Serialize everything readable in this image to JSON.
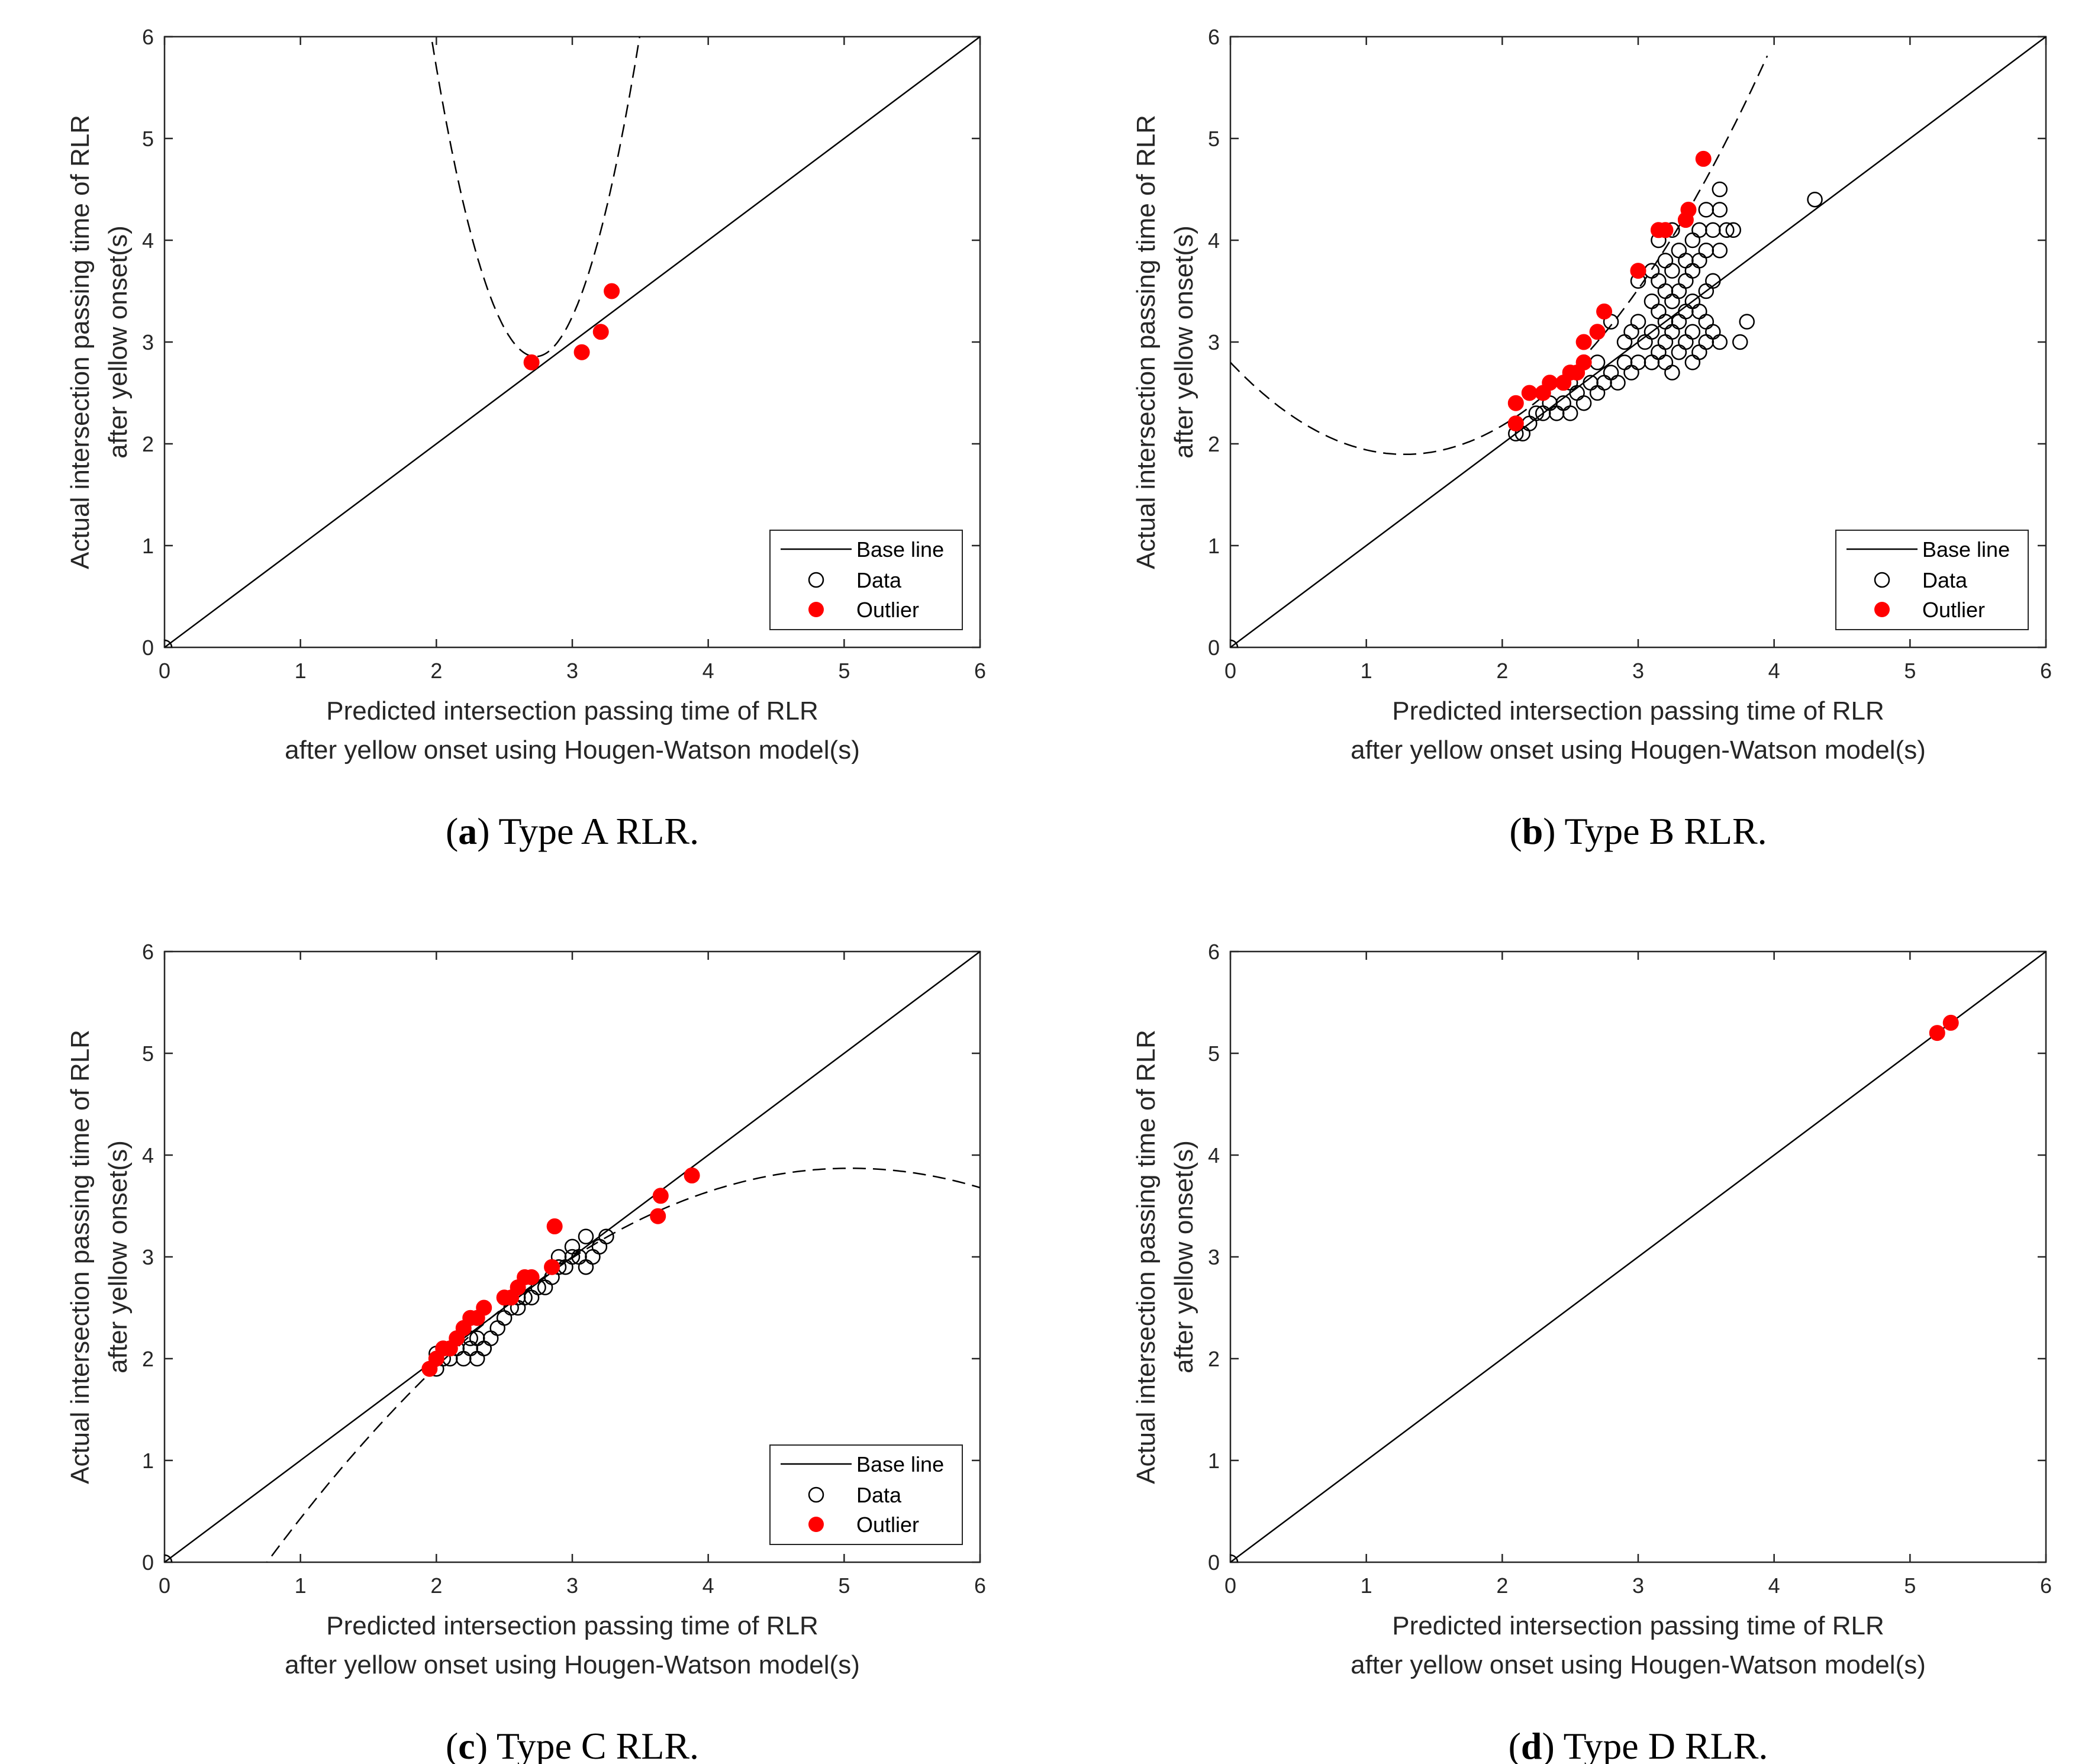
{
  "shared_labels": {
    "xlabel_line1": "Predicted intersection passing time of RLR",
    "xlabel_line2": "after yellow onset using Hougen-Watson model(s)",
    "ylabel_line1": "Actual intersection passing time of RLR",
    "ylabel_line2": "after yellow onset(s)",
    "legend": {
      "base": "Base line",
      "data": "Data",
      "outlier": "Outlier"
    }
  },
  "colors": {
    "outlier": "#ff0000",
    "data": "#000000",
    "axis": "#262626"
  },
  "chart_data": [
    {
      "type": "scatter",
      "panel": "a",
      "caption_letter": "a",
      "caption_text": "Type A RLR.",
      "xlim": [
        0,
        6
      ],
      "ylim": [
        0,
        6
      ],
      "xticks": [
        "0",
        "1",
        "2",
        "3",
        "4",
        "5",
        "6"
      ],
      "yticks": [
        "0",
        "1",
        "2",
        "3",
        "4",
        "5",
        "6"
      ],
      "legend_visible": true,
      "legend_location": "bottom-right",
      "base_line": [
        [
          0,
          0
        ],
        [
          6,
          6
        ]
      ],
      "fit_curve": {
        "type": "quadratic",
        "coefficients": [
          42.7,
          -29.2,
          5.35
        ],
        "x_range": [
          1.9,
          3.75
        ]
      },
      "data": [
        [
          0,
          0
        ]
      ],
      "outliers": [
        [
          2.7,
          2.8
        ],
        [
          3.07,
          2.9
        ],
        [
          3.21,
          3.1
        ],
        [
          3.29,
          3.5
        ]
      ]
    },
    {
      "type": "scatter",
      "panel": "b",
      "caption_letter": "b",
      "caption_text": "Type B RLR.",
      "xlim": [
        0,
        6
      ],
      "ylim": [
        0,
        6
      ],
      "xticks": [
        "0",
        "1",
        "2",
        "3",
        "4",
        "5",
        "6"
      ],
      "yticks": [
        "0",
        "1",
        "2",
        "3",
        "4",
        "5",
        "6"
      ],
      "legend_visible": true,
      "legend_location": "bottom-right",
      "base_line": [
        [
          0,
          0
        ],
        [
          6,
          6
        ]
      ],
      "fit_curve": {
        "type": "quadratic",
        "coefficients": [
          2.8,
          -1.41,
          0.55
        ],
        "x_range": [
          0,
          3.95
        ]
      },
      "data": [
        [
          0,
          0
        ],
        [
          4.3,
          4.4
        ],
        [
          3.8,
          3.2
        ],
        [
          3.75,
          3.0
        ],
        [
          3.6,
          3.0
        ],
        [
          2.1,
          2.1
        ],
        [
          2.15,
          2.1
        ],
        [
          2.2,
          2.2
        ],
        [
          2.25,
          2.3
        ],
        [
          2.3,
          2.3
        ],
        [
          2.35,
          2.4
        ],
        [
          2.4,
          2.3
        ],
        [
          2.45,
          2.4
        ],
        [
          2.5,
          2.3
        ],
        [
          2.55,
          2.5
        ],
        [
          2.6,
          2.4
        ],
        [
          2.65,
          2.6
        ],
        [
          2.7,
          2.5
        ],
        [
          2.75,
          2.6
        ],
        [
          2.8,
          2.7
        ],
        [
          2.85,
          2.6
        ],
        [
          2.9,
          2.8
        ],
        [
          2.95,
          2.7
        ],
        [
          3.0,
          2.8
        ],
        [
          3.0,
          3.2
        ],
        [
          2.3,
          2.5
        ],
        [
          2.5,
          2.6
        ],
        [
          2.7,
          2.8
        ],
        [
          2.9,
          3.0
        ],
        [
          2.8,
          3.2
        ],
        [
          2.95,
          3.1
        ],
        [
          3.0,
          3.6
        ],
        [
          3.05,
          3.0
        ],
        [
          3.1,
          2.8
        ],
        [
          3.1,
          3.1
        ],
        [
          3.1,
          3.4
        ],
        [
          3.1,
          3.7
        ],
        [
          3.15,
          2.9
        ],
        [
          3.15,
          3.3
        ],
        [
          3.15,
          3.6
        ],
        [
          3.15,
          4.0
        ],
        [
          3.2,
          2.8
        ],
        [
          3.2,
          3.0
        ],
        [
          3.2,
          3.2
        ],
        [
          3.2,
          3.5
        ],
        [
          3.2,
          3.8
        ],
        [
          3.25,
          2.7
        ],
        [
          3.25,
          3.1
        ],
        [
          3.25,
          3.4
        ],
        [
          3.25,
          3.7
        ],
        [
          3.25,
          4.1
        ],
        [
          3.3,
          2.9
        ],
        [
          3.3,
          3.2
        ],
        [
          3.3,
          3.5
        ],
        [
          3.3,
          3.9
        ],
        [
          3.35,
          3.0
        ],
        [
          3.35,
          3.3
        ],
        [
          3.35,
          3.6
        ],
        [
          3.35,
          4.2
        ],
        [
          3.4,
          2.8
        ],
        [
          3.4,
          3.1
        ],
        [
          3.4,
          3.4
        ],
        [
          3.4,
          3.7
        ],
        [
          3.4,
          4.0
        ],
        [
          3.45,
          2.9
        ],
        [
          3.45,
          3.3
        ],
        [
          3.45,
          3.8
        ],
        [
          3.5,
          3.0
        ],
        [
          3.5,
          3.2
        ],
        [
          3.5,
          3.5
        ],
        [
          3.5,
          3.9
        ],
        [
          3.5,
          4.3
        ],
        [
          3.55,
          3.1
        ],
        [
          3.55,
          3.6
        ],
        [
          3.55,
          4.1
        ],
        [
          3.6,
          3.9
        ],
        [
          3.6,
          4.3
        ],
        [
          3.6,
          4.5
        ],
        [
          3.65,
          4.1
        ],
        [
          3.7,
          4.1
        ],
        [
          3.45,
          4.1
        ],
        [
          3.35,
          3.8
        ]
      ],
      "outliers": [
        [
          2.1,
          2.2
        ],
        [
          2.1,
          2.4
        ],
        [
          2.2,
          2.5
        ],
        [
          2.3,
          2.5
        ],
        [
          2.35,
          2.6
        ],
        [
          2.45,
          2.6
        ],
        [
          2.5,
          2.7
        ],
        [
          2.55,
          2.7
        ],
        [
          2.6,
          2.8
        ],
        [
          2.6,
          3.0
        ],
        [
          2.7,
          3.1
        ],
        [
          2.75,
          3.3
        ],
        [
          3.0,
          3.7
        ],
        [
          3.15,
          4.1
        ],
        [
          3.2,
          4.1
        ],
        [
          3.35,
          4.2
        ],
        [
          3.37,
          4.3
        ],
        [
          3.48,
          4.8
        ]
      ]
    },
    {
      "type": "scatter",
      "panel": "c",
      "caption_letter": "c",
      "caption_text": "Type C RLR.",
      "xlim": [
        0,
        6
      ],
      "ylim": [
        0,
        6
      ],
      "xticks": [
        "0",
        "1",
        "2",
        "3",
        "4",
        "5",
        "6"
      ],
      "yticks": [
        "0",
        "1",
        "2",
        "3",
        "4",
        "5",
        "6"
      ],
      "legend_visible": true,
      "legend_location": "bottom-right",
      "base_line": [
        [
          0,
          0
        ],
        [
          6,
          6
        ]
      ],
      "fit_curve": {
        "type": "quadratic",
        "coefficients": [
          -1.48,
          2.12,
          -0.21
        ],
        "x_range": [
          0.7,
          6
        ]
      },
      "data": [
        [
          0,
          0
        ],
        [
          2.0,
          1.9
        ],
        [
          2.05,
          2.0
        ],
        [
          2.1,
          2.0
        ],
        [
          2.15,
          2.1
        ],
        [
          2.2,
          2.0
        ],
        [
          2.25,
          2.1
        ],
        [
          2.3,
          2.2
        ],
        [
          2.35,
          2.1
        ],
        [
          2.4,
          2.2
        ],
        [
          2.45,
          2.3
        ],
        [
          2.5,
          2.4
        ],
        [
          2.55,
          2.5
        ],
        [
          2.6,
          2.5
        ],
        [
          2.65,
          2.6
        ],
        [
          2.7,
          2.6
        ],
        [
          2.75,
          2.7
        ],
        [
          2.8,
          2.7
        ],
        [
          2.85,
          2.8
        ],
        [
          2.9,
          2.9
        ],
        [
          2.95,
          2.9
        ],
        [
          3.0,
          3.0
        ],
        [
          3.05,
          3.0
        ],
        [
          3.1,
          2.9
        ],
        [
          3.15,
          3.0
        ],
        [
          3.2,
          3.1
        ],
        [
          3.25,
          3.2
        ],
        [
          3.1,
          3.2
        ],
        [
          2.3,
          2.0
        ],
        [
          2.35,
          2.1
        ],
        [
          2.2,
          2.3
        ],
        [
          2.0,
          2.05
        ],
        [
          2.25,
          2.2
        ],
        [
          2.6,
          2.6
        ],
        [
          2.9,
          3.0
        ],
        [
          3.0,
          3.1
        ]
      ],
      "outliers": [
        [
          1.95,
          1.9
        ],
        [
          2.0,
          2.0
        ],
        [
          2.05,
          2.1
        ],
        [
          2.1,
          2.1
        ],
        [
          2.15,
          2.2
        ],
        [
          2.2,
          2.3
        ],
        [
          2.25,
          2.4
        ],
        [
          2.3,
          2.4
        ],
        [
          2.35,
          2.5
        ],
        [
          2.5,
          2.6
        ],
        [
          2.55,
          2.6
        ],
        [
          2.6,
          2.7
        ],
        [
          2.65,
          2.8
        ],
        [
          2.7,
          2.8
        ],
        [
          2.85,
          2.9
        ],
        [
          2.87,
          3.3
        ],
        [
          3.63,
          3.4
        ],
        [
          3.65,
          3.6
        ],
        [
          3.88,
          3.8
        ]
      ]
    },
    {
      "type": "scatter",
      "panel": "d",
      "caption_letter": "d",
      "caption_text": "Type D RLR.",
      "xlim": [
        0,
        6
      ],
      "ylim": [
        0,
        6
      ],
      "xticks": [
        "0",
        "1",
        "2",
        "3",
        "4",
        "5",
        "6"
      ],
      "yticks": [
        "0",
        "1",
        "2",
        "3",
        "4",
        "5",
        "6"
      ],
      "legend_visible": false,
      "base_line": [
        [
          0,
          0
        ],
        [
          6,
          6
        ]
      ],
      "fit_curve": null,
      "data": [
        [
          0,
          0
        ]
      ],
      "outliers": [
        [
          5.2,
          5.2
        ],
        [
          5.3,
          5.3
        ]
      ]
    }
  ]
}
